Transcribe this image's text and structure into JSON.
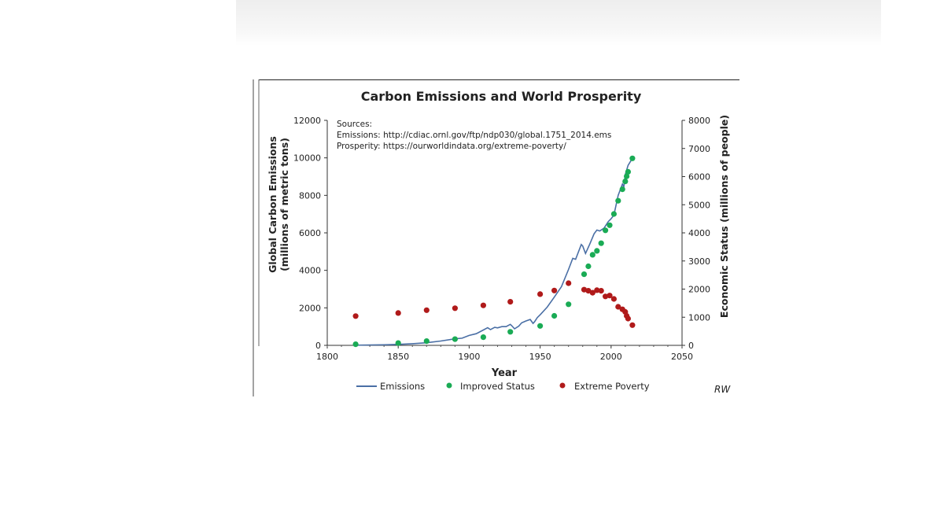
{
  "chart_data": {
    "type": "line+scatter",
    "title": "Carbon Emissions and World Prosperity",
    "sources": {
      "heading": "Sources:",
      "emissions": "Emissions: http://cdiac.ornl.gov/ftp/ndp030/global.1751_2014.ems",
      "prosperity": "Prosperity: https://ourworldindata.org/extreme-poverty/"
    },
    "xlabel": "Year",
    "ylabel_left_line1": "Global Carbon Emissions",
    "ylabel_left_line2": "(millions of metric tons)",
    "ylabel_right": "Economic Status (millions of people)",
    "xlim": [
      1800,
      2050
    ],
    "ylim_left": [
      0,
      12000
    ],
    "ylim_right": [
      0,
      8000
    ],
    "x_ticks": [
      1800,
      1850,
      1900,
      1950,
      2000,
      2050
    ],
    "y_left_ticks": [
      0,
      2000,
      4000,
      6000,
      8000,
      10000,
      12000
    ],
    "y_right_ticks": [
      0,
      1000,
      2000,
      3000,
      4000,
      5000,
      6000,
      7000,
      8000
    ],
    "legend_position": "bottom",
    "signature": "RW",
    "series": [
      {
        "name": "Emissions",
        "kind": "line",
        "axis": "left",
        "color": "#4a6fa5",
        "x": [
          1820,
          1830,
          1840,
          1850,
          1860,
          1870,
          1880,
          1890,
          1895,
          1900,
          1905,
          1910,
          1913,
          1915,
          1918,
          1920,
          1923,
          1926,
          1929,
          1930,
          1932,
          1935,
          1937,
          1940,
          1943,
          1945,
          1946,
          1948,
          1950,
          1955,
          1960,
          1965,
          1970,
          1973,
          1975,
          1979,
          1980,
          1982,
          1985,
          1988,
          1990,
          1992,
          1995,
          1998,
          2000,
          2002,
          2005,
          2008,
          2009,
          2010,
          2012,
          2014
        ],
        "y": [
          10,
          20,
          30,
          50,
          90,
          140,
          230,
          350,
          380,
          530,
          620,
          820,
          940,
          840,
          960,
          930,
          1000,
          1000,
          1120,
          1050,
          880,
          1030,
          1200,
          1300,
          1380,
          1170,
          1250,
          1480,
          1630,
          2040,
          2570,
          3130,
          4050,
          4640,
          4590,
          5380,
          5300,
          4900,
          5400,
          5950,
          6150,
          6100,
          6250,
          6600,
          6750,
          6950,
          8000,
          8600,
          8450,
          9100,
          9600,
          9850
        ]
      },
      {
        "name": "Improved Status",
        "kind": "scatter",
        "axis": "right",
        "color": "#1aab55",
        "x": [
          1820,
          1850,
          1870,
          1890,
          1910,
          1929,
          1950,
          1960,
          1970,
          1981,
          1984,
          1987,
          1990,
          1993,
          1996,
          1999,
          2002,
          2005,
          2008,
          2010,
          2011,
          2012,
          2015
        ],
        "y": [
          40,
          80,
          150,
          220,
          290,
          480,
          690,
          1050,
          1460,
          2530,
          2810,
          3220,
          3360,
          3630,
          4090,
          4270,
          4670,
          5140,
          5550,
          5830,
          6010,
          6170,
          6650
        ]
      },
      {
        "name": "Extreme Poverty",
        "kind": "scatter",
        "axis": "right",
        "color": "#b01a1a",
        "x": [
          1820,
          1850,
          1870,
          1890,
          1910,
          1929,
          1950,
          1960,
          1970,
          1981,
          1984,
          1987,
          1990,
          1993,
          1996,
          1999,
          2002,
          2005,
          2008,
          2010,
          2011,
          2012,
          2015
        ],
        "y": [
          1040,
          1150,
          1250,
          1320,
          1420,
          1550,
          1820,
          1950,
          2210,
          1980,
          1940,
          1870,
          1960,
          1940,
          1740,
          1770,
          1650,
          1370,
          1280,
          1190,
          1050,
          950,
          720
        ]
      }
    ]
  }
}
